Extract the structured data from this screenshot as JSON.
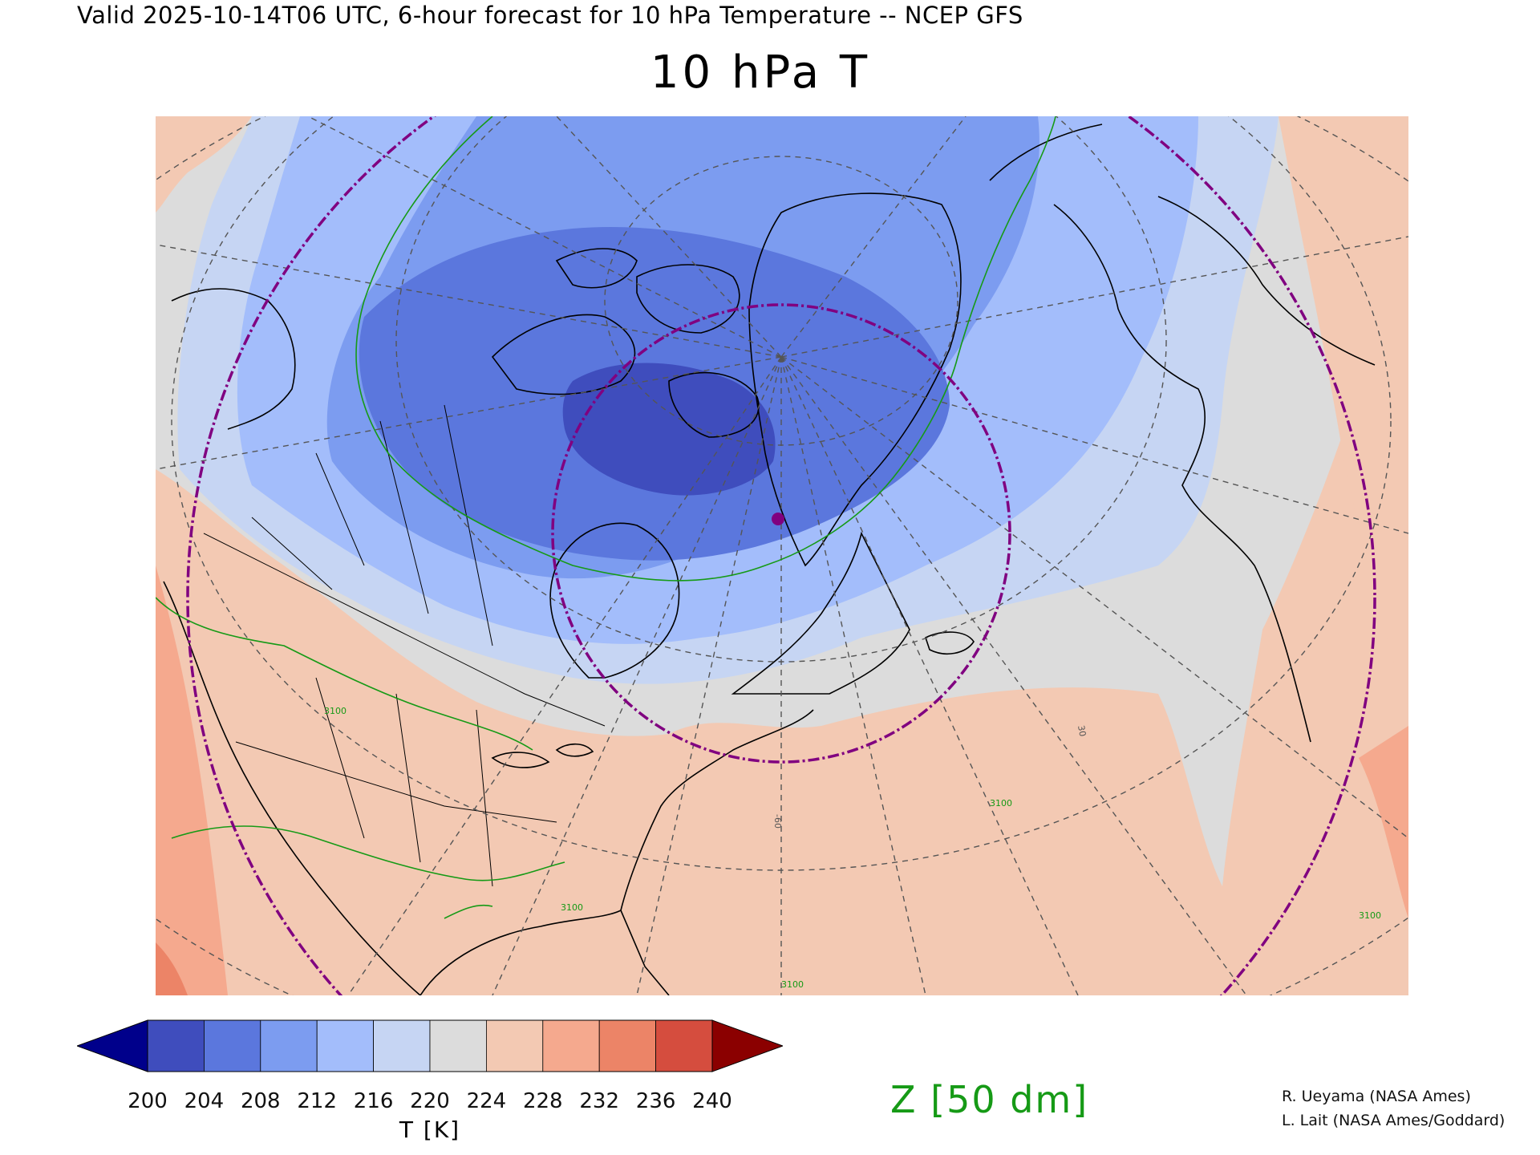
{
  "header": {
    "subtitle": "Valid 2025-10-14T06 UTC, 6-hour forecast for 10 hPa Temperature -- NCEP GFS",
    "title": "10 hPa T"
  },
  "map": {
    "projection": "polar-stereographic",
    "region": "North America / Arctic / North Atlantic",
    "fill_field": "temperature",
    "contour_field": "geopotential height",
    "contour_labels": [
      "3100",
      "3100",
      "3100",
      "3100",
      "3100"
    ],
    "grid_labels": [
      "-60",
      "30"
    ],
    "marker": {
      "color": "#800080"
    },
    "colors": {
      "coastline": "#000000",
      "graticule": "#555555",
      "contour": "#169a16",
      "circles": "#800080"
    }
  },
  "colorbar": {
    "levels": [
      "200",
      "204",
      "208",
      "212",
      "216",
      "220",
      "224",
      "228",
      "232",
      "236",
      "240"
    ],
    "colors": [
      "#00008b",
      "#3f4dbd",
      "#5b77dd",
      "#7c9cf0",
      "#a3bdfb",
      "#c6d5f3",
      "#dcdcdc",
      "#f3c9b3",
      "#f5a98e",
      "#ec8467",
      "#d54d3e",
      "#8b0000"
    ],
    "label": "T [K]"
  },
  "contour_legend": {
    "label": "Z [50 dm]"
  },
  "credits": [
    "R. Ueyama (NASA Ames)",
    "L. Lait (NASA Ames/Goddard)"
  ]
}
